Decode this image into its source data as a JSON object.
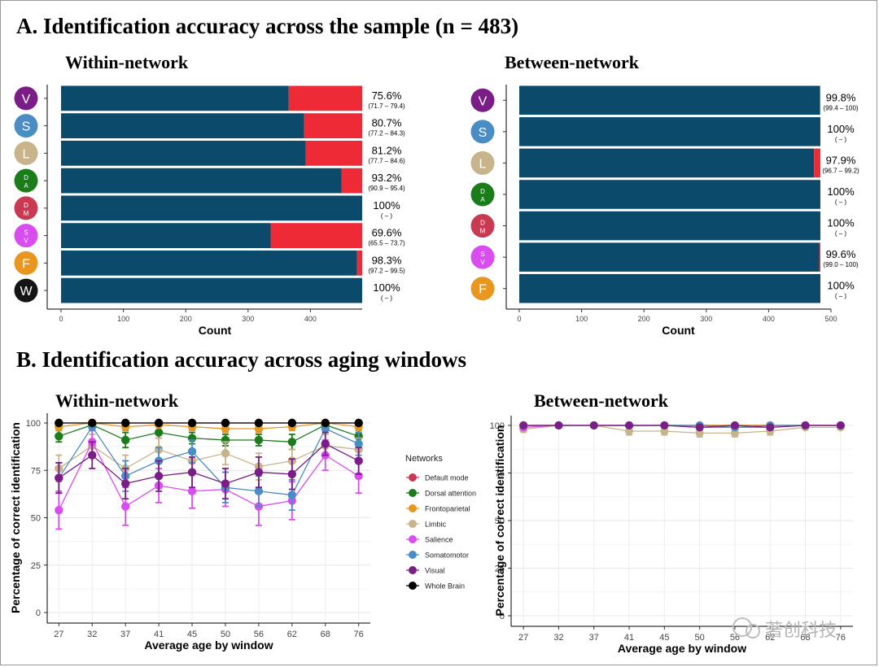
{
  "section_a_title": "A. Identification accuracy across the sample (n = 483)",
  "section_b_title": "B. Identification accuracy across aging windows",
  "watermark": "著创科技",
  "colors": {
    "correct": "#0b4a6b",
    "incorrect": "#ee2a36"
  },
  "chart_data": [
    {
      "type": "bar",
      "orientation": "horizontal-stacked",
      "title": "Within-network",
      "xlabel": "Count",
      "xlim": [
        0,
        483
      ],
      "xticks": [
        0,
        100,
        200,
        300,
        400
      ],
      "total": 483,
      "categories": [
        {
          "code": "V",
          "label": "V",
          "color": "#7b1d87",
          "pct": "75.6%",
          "ci": "(71.7 – 79.4)",
          "value": 75.6
        },
        {
          "code": "S",
          "label": "S",
          "color": "#4a8cc4",
          "pct": "80.7%",
          "ci": "(77.2 – 84.3)",
          "value": 80.7
        },
        {
          "code": "L",
          "label": "L",
          "color": "#c8b48a",
          "pct": "81.2%",
          "ci": "(77.7 – 84.6)",
          "value": 81.2
        },
        {
          "code": "DA",
          "label": "D A",
          "color": "#1a7d1a",
          "pct": "93.2%",
          "ci": "(90.9 – 95.4)",
          "value": 93.2
        },
        {
          "code": "DM",
          "label": "D M",
          "color": "#c93a52",
          "pct": "100%",
          "ci": "( – )",
          "value": 100
        },
        {
          "code": "SV",
          "label": "S V",
          "color": "#d94cf0",
          "pct": "69.6%",
          "ci": "(65.5 – 73.7)",
          "value": 69.6
        },
        {
          "code": "F",
          "label": "F",
          "color": "#e8961e",
          "pct": "98.3%",
          "ci": "(97.2 – 99.5)",
          "value": 98.3
        },
        {
          "code": "W",
          "label": "W",
          "color": "#141414",
          "pct": "100%",
          "ci": "( – )",
          "value": 100
        }
      ]
    },
    {
      "type": "bar",
      "orientation": "horizontal-stacked",
      "title": "Between-network",
      "xlabel": "Count",
      "xlim": [
        0,
        500
      ],
      "xticks": [
        0,
        100,
        200,
        300,
        400,
        500
      ],
      "total": 483,
      "categories": [
        {
          "code": "V",
          "label": "V",
          "color": "#7b1d87",
          "pct": "99.8%",
          "ci": "(99.4 – 100)",
          "value": 99.8
        },
        {
          "code": "S",
          "label": "S",
          "color": "#4a8cc4",
          "pct": "100%",
          "ci": "( – )",
          "value": 100
        },
        {
          "code": "L",
          "label": "L",
          "color": "#c8b48a",
          "pct": "97.9%",
          "ci": "(96.7 – 99.2)",
          "value": 97.9
        },
        {
          "code": "DA",
          "label": "D A",
          "color": "#1a7d1a",
          "pct": "100%",
          "ci": "( – )",
          "value": 100
        },
        {
          "code": "DM",
          "label": "D M",
          "color": "#c93a52",
          "pct": "100%",
          "ci": "( – )",
          "value": 100
        },
        {
          "code": "SV",
          "label": "S V",
          "color": "#d94cf0",
          "pct": "99.6%",
          "ci": "(99.0 – 100)",
          "value": 99.6
        },
        {
          "code": "F",
          "label": "F",
          "color": "#e8961e",
          "pct": "100%",
          "ci": "( – )",
          "value": 100
        }
      ]
    },
    {
      "type": "line",
      "title": "Within-network",
      "xlabel": "Average age by window",
      "ylabel": "Percentage of correct identification",
      "x": [
        "27",
        "32",
        "37",
        "41",
        "45",
        "50",
        "56",
        "62",
        "68",
        "76"
      ],
      "ylim": [
        0,
        100
      ],
      "yticks": [
        0,
        25,
        50,
        75,
        100
      ],
      "series": [
        {
          "name": "Default mode",
          "color": "#c93a52",
          "values": [
            100,
            100,
            100,
            100,
            100,
            100,
            100,
            100,
            100,
            100
          ],
          "err": [
            0,
            0,
            0,
            0,
            0,
            0,
            0,
            0,
            0,
            0
          ]
        },
        {
          "name": "Dorsal attention",
          "color": "#1a7d1a",
          "values": [
            93,
            99,
            91,
            95,
            92,
            91,
            91,
            90,
            99,
            93
          ],
          "err": [
            3,
            1,
            4,
            3,
            3,
            3,
            3,
            4,
            1,
            3
          ]
        },
        {
          "name": "Frontoparietal",
          "color": "#e8961e",
          "values": [
            98,
            100,
            98,
            99,
            98,
            97,
            97,
            98,
            100,
            98
          ],
          "err": [
            2,
            0,
            2,
            1,
            2,
            2,
            2,
            2,
            0,
            2
          ]
        },
        {
          "name": "Limbic",
          "color": "#c8b48a",
          "values": [
            76,
            88,
            76,
            86,
            80,
            84,
            77,
            80,
            88,
            86
          ],
          "err": [
            7,
            6,
            7,
            6,
            6,
            6,
            7,
            6,
            6,
            6
          ]
        },
        {
          "name": "Salience",
          "color": "#d94cf0",
          "values": [
            54,
            90,
            56,
            67,
            64,
            65,
            56,
            59,
            83,
            72
          ],
          "err": [
            10,
            8,
            10,
            9,
            9,
            9,
            10,
            10,
            8,
            9
          ]
        },
        {
          "name": "Somatomotor",
          "color": "#4a8cc4",
          "values": [
            71,
            98,
            72,
            80,
            85,
            66,
            64,
            62,
            97,
            89
          ],
          "err": [
            8,
            2,
            8,
            7,
            6,
            8,
            8,
            8,
            2,
            6
          ]
        },
        {
          "name": "Visual",
          "color": "#7b1d87",
          "values": [
            71,
            83,
            68,
            72,
            74,
            68,
            74,
            73,
            89,
            80
          ],
          "err": [
            8,
            7,
            8,
            8,
            8,
            8,
            8,
            8,
            6,
            7
          ]
        },
        {
          "name": "Whole Brain",
          "color": "#000000",
          "values": [
            100,
            100,
            100,
            100,
            100,
            100,
            100,
            100,
            100,
            100
          ],
          "err": [
            0,
            0,
            0,
            0,
            0,
            0,
            0,
            0,
            0,
            0
          ]
        }
      ],
      "legend": {
        "title": "Networks",
        "placement": "right"
      }
    },
    {
      "type": "line",
      "title": "Between-network",
      "xlabel": "Average age by window",
      "ylabel": "Percentage of correct identification",
      "x": [
        "27",
        "32",
        "37",
        "41",
        "45",
        "50",
        "56",
        "62",
        "68",
        "76"
      ],
      "ylim": [
        0,
        100
      ],
      "yticks": [
        0,
        25,
        50,
        75,
        100
      ],
      "series": [
        {
          "name": "Default mode",
          "color": "#c93a52",
          "values": [
            100,
            100,
            100,
            100,
            100,
            100,
            100,
            100,
            100,
            100
          ],
          "err": [
            0,
            0,
            0,
            0,
            0,
            0,
            0,
            0,
            0,
            0
          ]
        },
        {
          "name": "Dorsal attention",
          "color": "#1a7d1a",
          "values": [
            100,
            100,
            100,
            100,
            100,
            100,
            100,
            100,
            100,
            100
          ],
          "err": [
            0,
            0,
            0,
            0,
            0,
            0,
            0,
            0,
            0,
            0
          ]
        },
        {
          "name": "Frontoparietal",
          "color": "#e8961e",
          "values": [
            100,
            100,
            100,
            100,
            100,
            100,
            100,
            100,
            100,
            100
          ],
          "err": [
            0,
            0,
            0,
            0,
            0,
            0,
            0,
            0,
            0,
            0
          ]
        },
        {
          "name": "Limbic",
          "color": "#c8b48a",
          "values": [
            98,
            100,
            100,
            97,
            97,
            96,
            96,
            97,
            99,
            99
          ],
          "err": [
            1.5,
            0,
            0,
            2,
            2,
            2,
            2,
            2,
            1,
            1
          ]
        },
        {
          "name": "Salience",
          "color": "#d94cf0",
          "values": [
            99,
            100,
            100,
            100,
            100,
            99,
            99,
            99,
            100,
            100
          ],
          "err": [
            1,
            0,
            0,
            0,
            0,
            1,
            1,
            1,
            0,
            0
          ]
        },
        {
          "name": "Somatomotor",
          "color": "#4a8cc4",
          "values": [
            100,
            100,
            100,
            100,
            100,
            100,
            99,
            100,
            100,
            100
          ],
          "err": [
            0,
            0,
            0,
            0,
            0,
            0,
            1,
            0,
            0,
            0
          ]
        },
        {
          "name": "Visual",
          "color": "#7b1d87",
          "values": [
            100,
            100,
            100,
            100,
            100,
            99,
            100,
            99,
            100,
            100
          ],
          "err": [
            0,
            0,
            0,
            0,
            0,
            1,
            0,
            1,
            0,
            0
          ]
        }
      ]
    }
  ]
}
